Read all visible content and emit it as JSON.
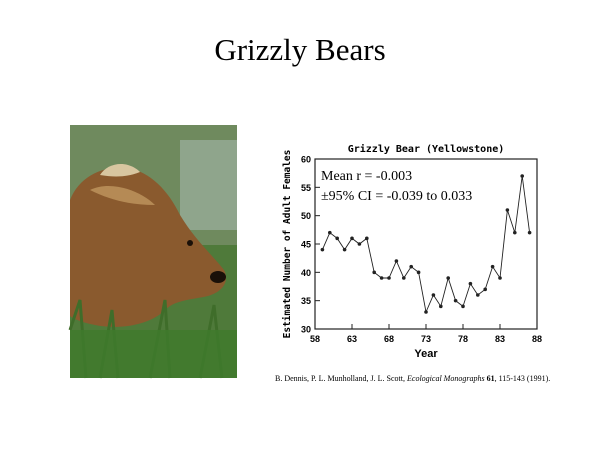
{
  "slide_title": "Grizzly Bears",
  "citation": [
    "B. Dennis, P. L. Munholland, J. L. Scott, ",
    "Ecological Monographs",
    " 61",
    ", 115-143 (1991)."
  ],
  "chart_data": {
    "type": "line",
    "title": "Grizzly Bear (Yellowstone)",
    "xlabel": "Year",
    "ylabel": "Estimated Number of Adult Females",
    "annotations": [
      "Mean r = -0.003",
      "±95% CI = -0.039 to 0.033"
    ],
    "x": [
      59,
      60,
      61,
      62,
      63,
      64,
      65,
      66,
      67,
      68,
      69,
      70,
      71,
      72,
      73,
      74,
      75,
      76,
      77,
      78,
      79,
      80,
      81,
      82,
      83,
      84,
      85,
      86,
      87
    ],
    "series": [
      {
        "name": "Adult females",
        "color": "#222222",
        "values": [
          44,
          47,
          46,
          44,
          46,
          45,
          46,
          40,
          39,
          39,
          42,
          39,
          41,
          40,
          33,
          36,
          34,
          39,
          35,
          34,
          38,
          36,
          37,
          41,
          39,
          51,
          47,
          57,
          47
        ]
      }
    ],
    "xlim": [
      58,
      88
    ],
    "xticks": [
      58,
      63,
      68,
      73,
      78,
      83,
      88
    ],
    "ylim": [
      30,
      60
    ],
    "yticks": [
      30,
      35,
      40,
      45,
      50,
      55,
      60
    ]
  }
}
